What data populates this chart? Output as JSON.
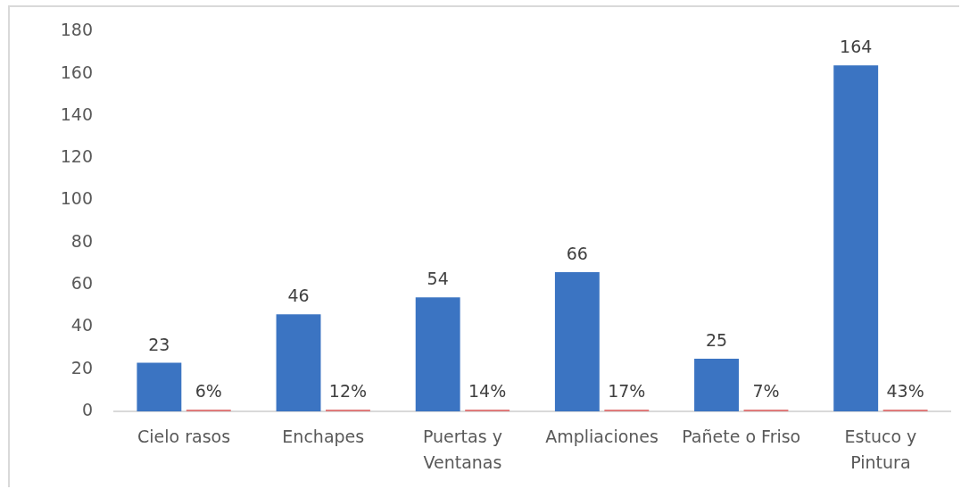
{
  "chart_data": {
    "type": "bar",
    "categories": [
      "Cielo rasos",
      "Enchapes",
      "Puertas y Ventanas",
      "Ampliaciones",
      "Pañete o Friso",
      "Estuco y Pintura"
    ],
    "series": [
      {
        "color": "#3b74c2",
        "values": [
          23,
          46,
          54,
          66,
          25,
          164
        ],
        "value_labels": [
          "23",
          "46",
          "54",
          "66",
          "25",
          "164"
        ]
      },
      {
        "color": "#e07b7b",
        "values": [
          0.06,
          0.12,
          0.14,
          0.17,
          0.07,
          0.43
        ],
        "value_labels": [
          "6%",
          "12%",
          "14%",
          "17%",
          "7%",
          "43%"
        ]
      }
    ],
    "ylim": [
      0,
      180
    ],
    "yticks": [
      0,
      20,
      40,
      60,
      80,
      100,
      120,
      140,
      160,
      180
    ],
    "grid": false,
    "legend": false
  }
}
